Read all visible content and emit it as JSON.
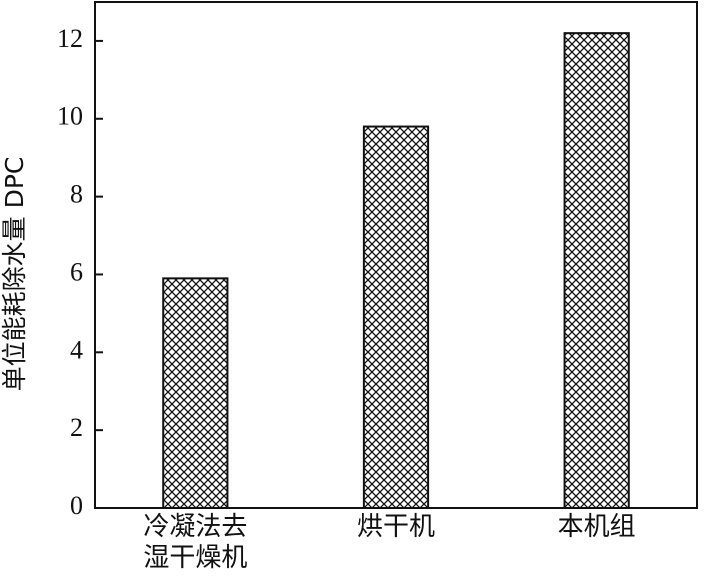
{
  "chart_data": {
    "type": "bar",
    "y_label": "单位能耗除水量 DPC",
    "categories": [
      "冷凝法去湿干燥机",
      "烘干机",
      "本机组"
    ],
    "values": [
      5.9,
      9.8,
      12.2
    ],
    "ylim": [
      0,
      13
    ],
    "yticks": [
      0,
      2,
      4,
      6,
      8,
      10,
      12
    ],
    "color": "#111111",
    "grid": false
  }
}
